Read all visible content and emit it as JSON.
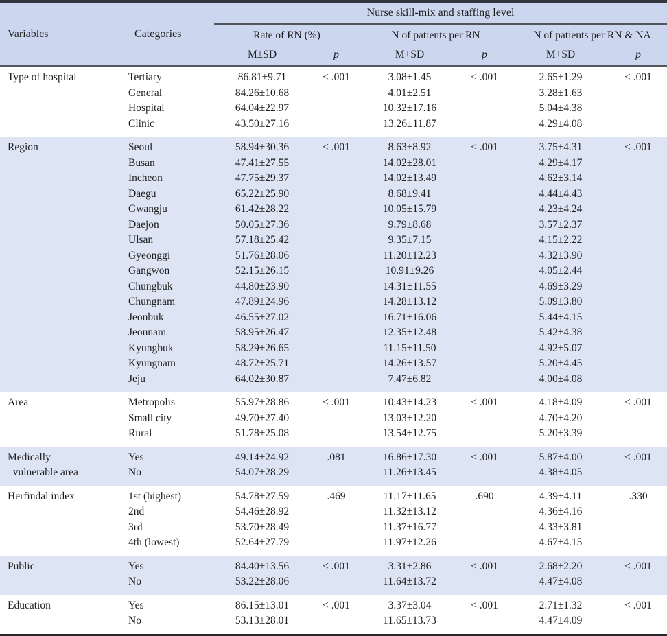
{
  "colors": {
    "header_bg": "#ccd6ef",
    "stripe_bg": "#dde4f4",
    "rule_dark": "#35353e",
    "rule_gray": "#70707a",
    "text": "#1e1e1e"
  },
  "table": {
    "header": {
      "variables": "Variables",
      "categories": "Categories",
      "group_title": "Nurse skill-mix and staffing level",
      "groups": [
        {
          "label": "Rate of RN (%)",
          "msd": "M±SD",
          "p": "p"
        },
        {
          "label": "N of patients per RN",
          "msd": "M+SD",
          "p": "p"
        },
        {
          "label": "N of patients per RN & NA",
          "msd": "M+SD",
          "p": "p"
        }
      ]
    },
    "columns": [
      "category",
      "rate_rn_msd",
      "rate_rn_p",
      "patients_per_rn_msd",
      "patients_per_rn_p",
      "patients_per_rn_na_msd",
      "patients_per_rn_na_p"
    ],
    "sections": [
      {
        "variable": "Type of hospital",
        "shaded": false,
        "rows": [
          [
            "Tertiary",
            "86.81±9.71",
            "< .001",
            "3.08±1.45",
            "< .001",
            "2.65±1.29",
            "< .001"
          ],
          [
            "General",
            "84.26±10.68",
            "",
            "4.01±2.51",
            "",
            "3.28±1.63",
            ""
          ],
          [
            "Hospital",
            "64.04±22.97",
            "",
            "10.32±17.16",
            "",
            "5.04±4.38",
            ""
          ],
          [
            "Clinic",
            "43.50±27.16",
            "",
            "13.26±11.87",
            "",
            "4.29±4.08",
            ""
          ]
        ]
      },
      {
        "variable": "Region",
        "shaded": true,
        "rows": [
          [
            "Seoul",
            "58.94±30.36",
            "< .001",
            "8.63±8.92",
            "< .001",
            "3.75±4.31",
            "< .001"
          ],
          [
            "Busan",
            "47.41±27.55",
            "",
            "14.02±28.01",
            "",
            "4.29±4.17",
            ""
          ],
          [
            "Incheon",
            "47.75±29.37",
            "",
            "14.02±13.49",
            "",
            "4.62±3.14",
            ""
          ],
          [
            "Daegu",
            "65.22±25.90",
            "",
            "8.68±9.41",
            "",
            "4.44±4.43",
            ""
          ],
          [
            "Gwangju",
            "61.42±28.22",
            "",
            "10.05±15.79",
            "",
            "4.23±4.24",
            ""
          ],
          [
            "Daejon",
            "50.05±27.36",
            "",
            "9.79±8.68",
            "",
            "3.57±2.37",
            ""
          ],
          [
            "Ulsan",
            "57.18±25.42",
            "",
            "9.35±7.15",
            "",
            "4.15±2.22",
            ""
          ],
          [
            "Gyeonggi",
            "51.76±28.06",
            "",
            "11.20±12.23",
            "",
            "4.32±3.90",
            ""
          ],
          [
            "Gangwon",
            "52.15±26.15",
            "",
            "10.91±9.26",
            "",
            "4.05±2.44",
            ""
          ],
          [
            "Chungbuk",
            "44.80±23.90",
            "",
            "14.31±11.55",
            "",
            "4.69±3.29",
            ""
          ],
          [
            "Chungnam",
            "47.89±24.96",
            "",
            "14.28±13.12",
            "",
            "5.09±3.80",
            ""
          ],
          [
            "Jeonbuk",
            "46.55±27.02",
            "",
            "16.71±16.06",
            "",
            "5.44±4.15",
            ""
          ],
          [
            "Jeonnam",
            "58.95±26.47",
            "",
            "12.35±12.48",
            "",
            "5.42±4.38",
            ""
          ],
          [
            "Kyungbuk",
            "58.29±26.65",
            "",
            "11.15±11.50",
            "",
            "4.92±5.07",
            ""
          ],
          [
            "Kyungnam",
            "48.72±25.71",
            "",
            "14.26±13.57",
            "",
            "5.20±4.45",
            ""
          ],
          [
            "Jeju",
            "64.02±30.87",
            "",
            "7.47±6.82",
            "",
            "4.00±4.08",
            ""
          ]
        ]
      },
      {
        "variable": "Area",
        "shaded": false,
        "rows": [
          [
            "Metropolis",
            "55.97±28.86",
            "< .001",
            "10.43±14.23",
            "< .001",
            "4.18±4.09",
            "< .001"
          ],
          [
            "Small city",
            "49.70±27.40",
            "",
            "13.03±12.20",
            "",
            "4.70±4.20",
            ""
          ],
          [
            "Rural",
            "51.78±25.08",
            "",
            "13.54±12.75",
            "",
            "5.20±3.39",
            ""
          ]
        ]
      },
      {
        "variable": "Medically\n  vulnerable area",
        "shaded": true,
        "rows": [
          [
            "Yes",
            "49.14±24.92",
            ".081",
            "16.86±17.30",
            "< .001",
            "5.87±4.00",
            "< .001"
          ],
          [
            "No",
            "54.07±28.29",
            "",
            "11.26±13.45",
            "",
            "4.38±4.05",
            ""
          ]
        ]
      },
      {
        "variable": "Herfindal index",
        "shaded": false,
        "rows": [
          [
            "1st (highest)",
            "54.78±27.59",
            ".469",
            "11.17±11.65",
            ".690",
            "4.39±4.11",
            ".330"
          ],
          [
            "2nd",
            "54.46±28.92",
            "",
            "11.32±13.12",
            "",
            "4.36±4.16",
            ""
          ],
          [
            "3rd",
            "53.70±28.49",
            "",
            "11.37±16.77",
            "",
            "4.33±3.81",
            ""
          ],
          [
            "4th (lowest)",
            "52.64±27.79",
            "",
            "11.97±12.26",
            "",
            "4.67±4.15",
            ""
          ]
        ]
      },
      {
        "variable": "Public",
        "shaded": true,
        "rows": [
          [
            "Yes",
            "84.40±13.56",
            "< .001",
            "3.31±2.86",
            "< .001",
            "2.68±2.20",
            "< .001"
          ],
          [
            "No",
            "53.22±28.06",
            "",
            "11.64±13.72",
            "",
            "4.47±4.08",
            ""
          ]
        ]
      },
      {
        "variable": "Education",
        "shaded": false,
        "rows": [
          [
            "Yes",
            "86.15±13.01",
            "< .001",
            "3.37±3.04",
            "< .001",
            "2.71±1.32",
            "< .001"
          ],
          [
            "No",
            "53.13±28.01",
            "",
            "11.65±13.73",
            "",
            "4.47±4.09",
            ""
          ]
        ]
      }
    ]
  }
}
